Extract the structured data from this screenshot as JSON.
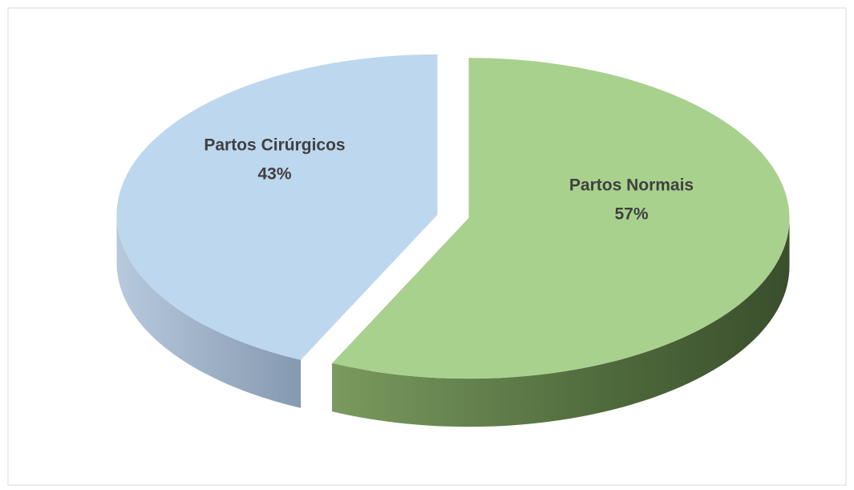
{
  "chart_data": {
    "type": "pie",
    "categories": [
      "Partos Normais",
      "Partos Cirúrgicos"
    ],
    "values": [
      57,
      43
    ],
    "value_labels": [
      "57%",
      "43%"
    ],
    "colors": [
      "#a9d18e",
      "#bdd7ee"
    ],
    "start_angle": -90,
    "direction": "clockwise",
    "exploded": true,
    "three_d": true
  }
}
